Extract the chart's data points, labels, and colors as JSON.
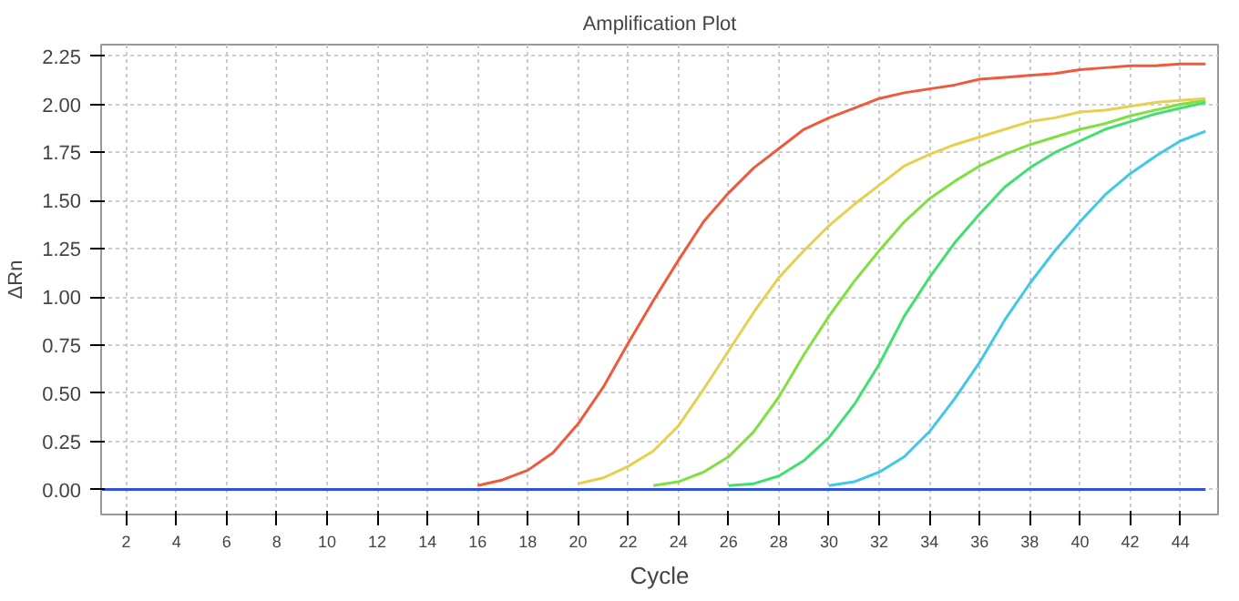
{
  "chart_data": {
    "type": "line",
    "title": "Amplification Plot",
    "xlabel": "Cycle",
    "ylabel": "ΔRn",
    "x": [
      1,
      2,
      3,
      4,
      5,
      6,
      7,
      8,
      9,
      10,
      11,
      12,
      13,
      14,
      15,
      16,
      17,
      18,
      19,
      20,
      21,
      22,
      23,
      24,
      25,
      26,
      27,
      28,
      29,
      30,
      31,
      32,
      33,
      34,
      35,
      36,
      37,
      38,
      39,
      40,
      41,
      42,
      43,
      44,
      45
    ],
    "xlim": [
      1,
      45.5
    ],
    "xticks": [
      2,
      4,
      6,
      8,
      10,
      12,
      14,
      16,
      18,
      20,
      22,
      24,
      26,
      28,
      30,
      32,
      34,
      36,
      38,
      40,
      42,
      44
    ],
    "ylim": [
      -0.13,
      2.31
    ],
    "yticks": [
      {
        "value": 0,
        "label": "0.00"
      },
      {
        "value": 0.25,
        "label": "0.25"
      },
      {
        "value": 0.5,
        "label": "0.50"
      },
      {
        "value": 0.75,
        "label": "0.75"
      },
      {
        "value": 1,
        "label": "1.00"
      },
      {
        "value": 1.25,
        "label": "1.25"
      },
      {
        "value": 1.5,
        "label": "1.50"
      },
      {
        "value": 1.75,
        "label": "1.75"
      },
      {
        "value": 2,
        "label": "2.00"
      },
      {
        "value": 2.25,
        "label": "2.25"
      }
    ],
    "grid": true,
    "marker": "none",
    "line_style": "solid",
    "series": [
      {
        "color": "#40c8e8",
        "values": [
          null,
          null,
          null,
          null,
          null,
          null,
          null,
          null,
          null,
          null,
          null,
          null,
          null,
          null,
          null,
          null,
          null,
          null,
          null,
          null,
          null,
          null,
          null,
          null,
          null,
          null,
          null,
          null,
          null,
          0.02,
          0.04,
          0.09,
          0.17,
          0.3,
          0.47,
          0.66,
          0.88,
          1.07,
          1.24,
          1.39,
          1.53,
          1.64,
          1.73,
          1.81,
          1.86
        ]
      },
      {
        "color": "#40e070",
        "values": [
          null,
          null,
          null,
          null,
          null,
          null,
          null,
          null,
          null,
          null,
          null,
          null,
          null,
          null,
          null,
          null,
          null,
          null,
          null,
          null,
          null,
          null,
          null,
          null,
          null,
          0.02,
          0.03,
          0.07,
          0.15,
          0.27,
          0.44,
          0.65,
          0.9,
          1.1,
          1.28,
          1.43,
          1.57,
          1.67,
          1.75,
          1.81,
          1.87,
          1.91,
          1.95,
          1.98,
          2.01
        ]
      },
      {
        "color": "#80e040",
        "values": [
          null,
          null,
          null,
          null,
          null,
          null,
          null,
          null,
          null,
          null,
          null,
          null,
          null,
          null,
          null,
          null,
          null,
          null,
          null,
          null,
          null,
          null,
          0.02,
          0.04,
          0.09,
          0.17,
          0.3,
          0.48,
          0.7,
          0.9,
          1.08,
          1.24,
          1.39,
          1.51,
          1.6,
          1.68,
          1.74,
          1.79,
          1.83,
          1.87,
          1.9,
          1.94,
          1.97,
          2.0,
          2.02
        ]
      },
      {
        "color": "#e6d050",
        "values": [
          null,
          null,
          null,
          null,
          null,
          null,
          null,
          null,
          null,
          null,
          null,
          null,
          null,
          null,
          null,
          null,
          null,
          null,
          null,
          0.03,
          0.06,
          0.12,
          0.2,
          0.33,
          0.52,
          0.72,
          0.92,
          1.1,
          1.24,
          1.37,
          1.48,
          1.58,
          1.68,
          1.74,
          1.79,
          1.83,
          1.87,
          1.91,
          1.93,
          1.96,
          1.97,
          1.99,
          2.01,
          2.02,
          2.03
        ]
      },
      {
        "color": "#f05a3c",
        "values": [
          null,
          null,
          null,
          null,
          null,
          null,
          null,
          null,
          null,
          null,
          null,
          null,
          null,
          null,
          null,
          0.02,
          0.05,
          0.1,
          0.19,
          0.34,
          0.53,
          0.76,
          0.98,
          1.19,
          1.39,
          1.54,
          1.67,
          1.77,
          1.87,
          1.93,
          1.98,
          2.03,
          2.06,
          2.08,
          2.1,
          2.13,
          2.14,
          2.15,
          2.16,
          2.18,
          2.19,
          2.2,
          2.2,
          2.21,
          2.21
        ]
      },
      {
        "color": "#3050e0",
        "values": [
          0,
          0,
          0,
          0,
          0,
          0,
          0,
          0,
          0,
          0,
          0,
          0,
          0,
          0,
          0,
          0,
          0,
          0,
          0,
          0,
          0,
          0,
          0,
          0,
          0,
          0,
          0,
          0,
          0,
          0,
          0,
          0,
          0,
          0,
          0,
          0,
          0,
          0,
          0,
          0,
          0,
          0,
          0,
          0,
          0
        ]
      }
    ]
  }
}
